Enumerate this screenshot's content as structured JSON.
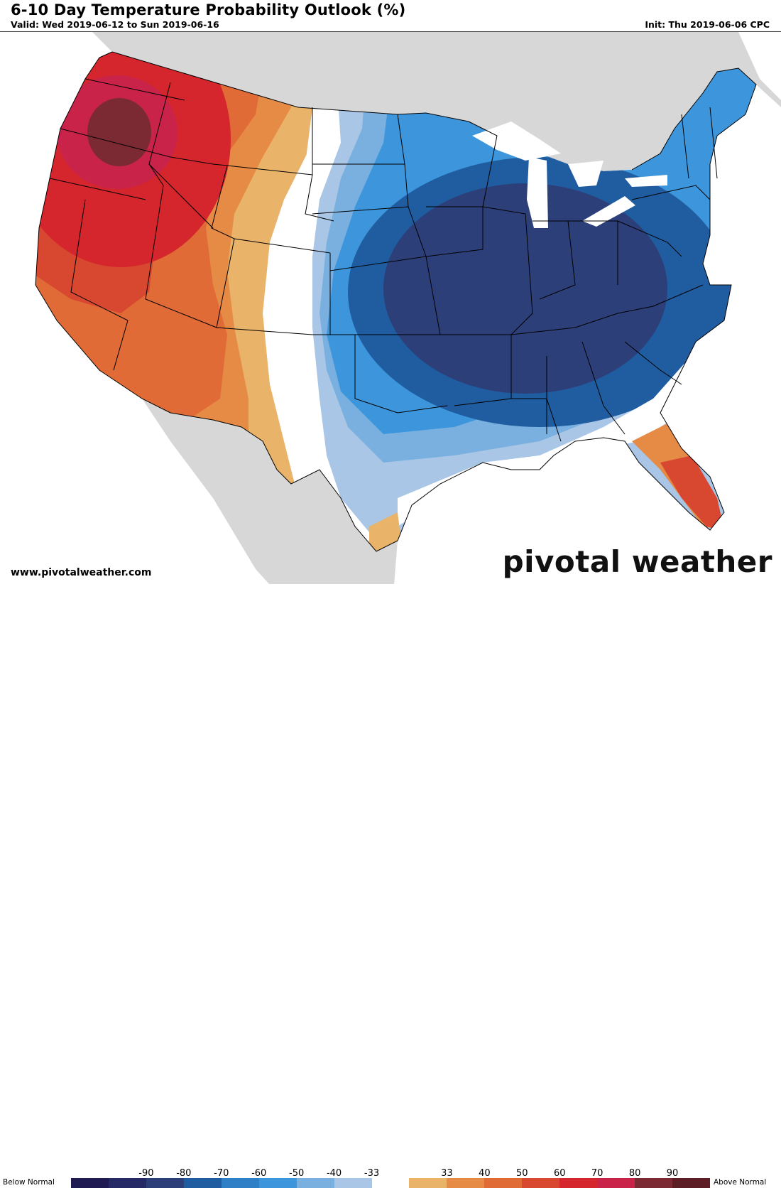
{
  "header": {
    "title": "6-10 Day Temperature Probability Outlook (%)",
    "valid": "Valid: Wed 2019-06-12 to Sun 2019-06-16",
    "init": "Init: Thu 2019-06-06 CPC"
  },
  "footer": {
    "website": "www.pivotalweather.com",
    "brand": "pivotal weather"
  },
  "legend": {
    "left_label": "Below Normal",
    "right_label": "Above Normal",
    "ticks": [
      "-90",
      "-80",
      "-70",
      "-60",
      "-50",
      "-40",
      "-33",
      "33",
      "40",
      "50",
      "60",
      "70",
      "80",
      "90"
    ],
    "colors": [
      "#1f1b52",
      "#252a66",
      "#2c3f79",
      "#1f5da0",
      "#2f7fc7",
      "#3d96dc",
      "#7ab0e0",
      "#a9c6e6",
      "#ffffff",
      "#e9b46a",
      "#e68b45",
      "#e06b37",
      "#d8472f",
      "#d4262c",
      "#c9234a",
      "#7b2a33",
      "#5c1e24"
    ]
  },
  "map": {
    "colors": {
      "ocean": "#ffffff",
      "land_bg": "#d7d7d7",
      "lakes": "#ffffff",
      "above_33": "#e9b46a",
      "above_40": "#e68b45",
      "above_50": "#e06b37",
      "above_60": "#d8472f",
      "above_70": "#d4262c",
      "above_80": "#c9234a",
      "above_90": "#7b2a33",
      "below_33": "#a9c6e6",
      "below_40": "#7ab0e0",
      "below_50": "#3d96dc",
      "below_60": "#1f5da0",
      "below_70": "#2c3f79",
      "near_normal": "#ffffff"
    }
  }
}
